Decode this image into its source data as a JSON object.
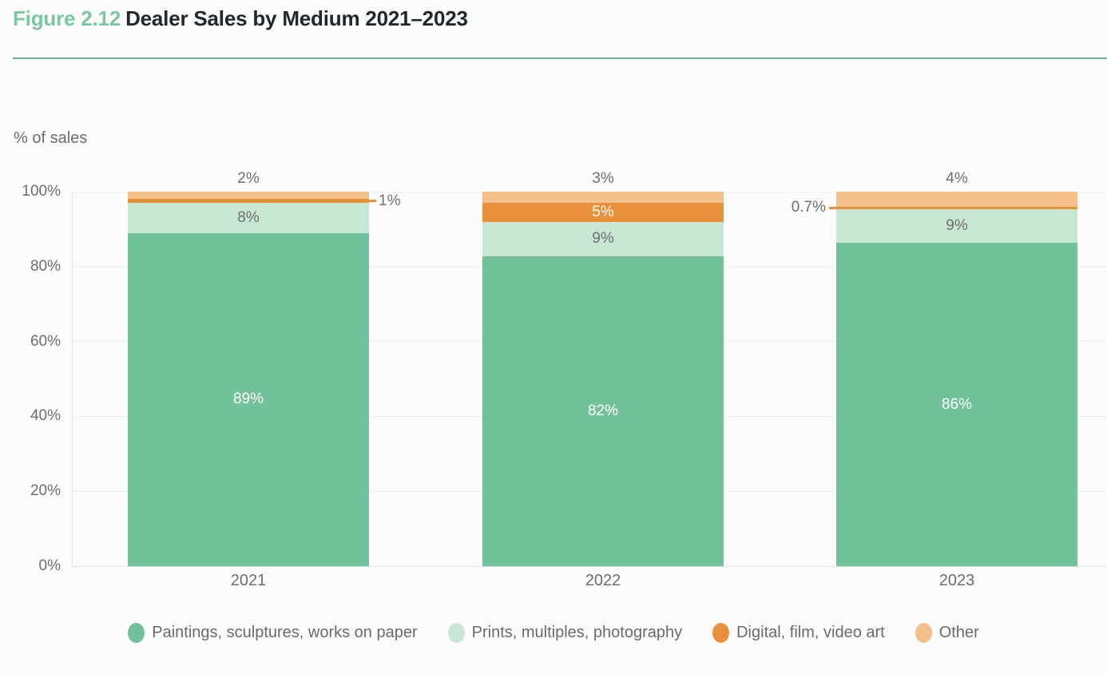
{
  "title": {
    "prefix": "Figure 2.12",
    "text": "Dealer Sales by Medium 2021–2023"
  },
  "colors": {
    "title_accent": "#7cc7a1",
    "title_text": "#20282b",
    "divider": "#67b294",
    "axis_text": "#6e6e6e",
    "gridline": "#efefef",
    "leader_line": "#e8903a"
  },
  "chart_data": {
    "type": "bar",
    "stacked": true,
    "title": "Dealer Sales by Medium 2021–2023",
    "ylabel": "% of sales",
    "xlabel": "",
    "ylim": [
      0,
      100
    ],
    "yticks": [
      "0%",
      "20%",
      "40%",
      "60%",
      "80%",
      "100%"
    ],
    "grid": true,
    "legend_position": "bottom",
    "categories": [
      "2021",
      "2022",
      "2023"
    ],
    "series": [
      {
        "name": "Paintings, sculptures, works on paper",
        "color": "#71c19a",
        "values": [
          89,
          82,
          86
        ],
        "labels": [
          "89%",
          "82%",
          "86%"
        ]
      },
      {
        "name": "Prints, multiples, photography",
        "color": "#c7e7d5",
        "values": [
          8,
          9,
          9
        ],
        "labels": [
          "8%",
          "9%",
          "9%"
        ]
      },
      {
        "name": "Digital, film, video art",
        "color": "#e8903a",
        "values": [
          1,
          5,
          0.7
        ],
        "labels": [
          "1%",
          "5%",
          "0.7%"
        ]
      },
      {
        "name": "Other",
        "color": "#f3bf8b",
        "values": [
          2,
          3,
          4
        ],
        "labels": [
          "2%",
          "3%",
          "4%"
        ]
      }
    ],
    "label_placement": [
      [
        "inside",
        "inside",
        "inside"
      ],
      [
        "inside",
        "inside",
        "inside"
      ],
      [
        "leader-right",
        "inside",
        "leader-left"
      ],
      [
        "above",
        "above",
        "above"
      ]
    ]
  }
}
